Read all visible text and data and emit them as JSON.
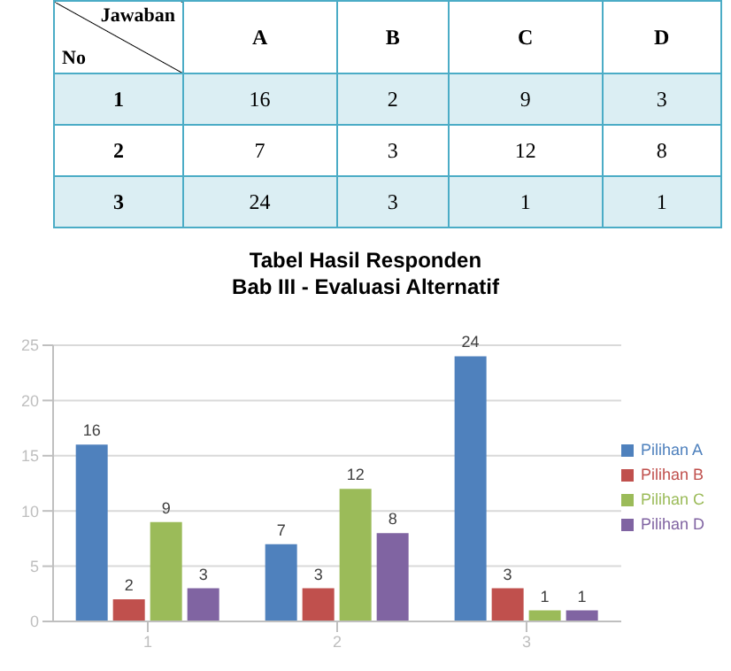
{
  "chart_data": {
    "type": "bar",
    "title": "Tabel Hasil Responden",
    "subtitle": "Bab III - Evaluasi Alternatif",
    "annotations": [
      "Jawaban",
      "No",
      "A",
      "B",
      "C",
      "D"
    ],
    "categories": [
      "1",
      "2",
      "3"
    ],
    "series": [
      {
        "name": "Pilihan A",
        "color": "#4f81bd",
        "values": [
          16,
          7,
          24
        ],
        "value_labels": [
          "16",
          "7",
          "24"
        ]
      },
      {
        "name": "Pilihan B",
        "color": "#c0504d",
        "values": [
          2,
          3,
          3
        ],
        "value_labels": [
          "2",
          "3",
          "3"
        ]
      },
      {
        "name": "Pilihan C",
        "color": "#9bbb59",
        "values": [
          9,
          12,
          1
        ],
        "value_labels": [
          "9",
          "12",
          "1"
        ]
      },
      {
        "name": "Pilihan D",
        "color": "#8064a2",
        "values": [
          3,
          8,
          1
        ],
        "value_labels": [
          "3",
          "8",
          "1"
        ]
      }
    ],
    "ylim": [
      0,
      25
    ],
    "yticks": [
      0,
      5,
      10,
      15,
      20,
      25
    ],
    "grid": "y",
    "legend": "right",
    "data_labels": true
  }
}
